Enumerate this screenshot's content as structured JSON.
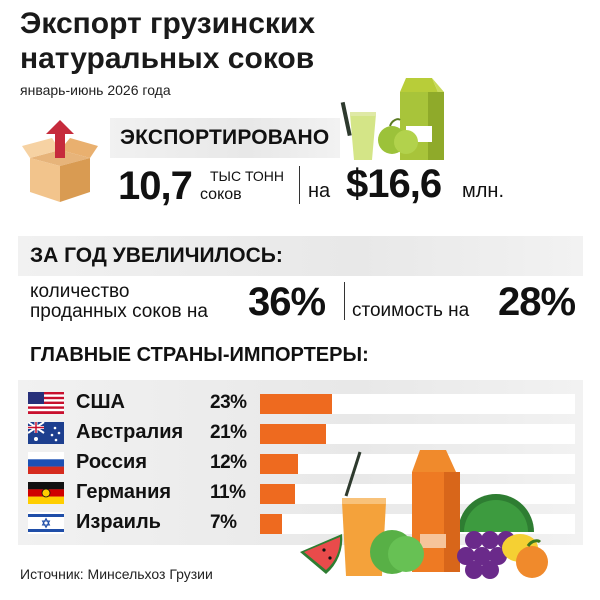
{
  "header": {
    "title_line1": "Экспорт грузинских",
    "title_line2": "натуральных соков",
    "subtitle": "январь-июнь 2026 года"
  },
  "exported": {
    "label": "ЭКСПОРТИРОВАНО",
    "volume": "10,7",
    "volume_unit_line1": "тыс тонн",
    "volume_unit_line2": "соков",
    "value_prefix": "на",
    "value": "$16,6",
    "value_unit": "млн."
  },
  "year_growth": {
    "label": "ЗА ГОД УВЕЛИЧИЛОСЬ:",
    "quantity_line1": "количество",
    "quantity_line2": "проданных соков на",
    "quantity_pct": "36%",
    "cost_text": "стоимость на",
    "cost_pct": "28%"
  },
  "importers_label": "ГЛАВНЫЕ СТРАНЫ-ИМПОРТЕРЫ:",
  "chart_data": {
    "type": "bar",
    "orientation": "horizontal",
    "categories": [
      "США",
      "Австралия",
      "Россия",
      "Германия",
      "Израиль"
    ],
    "values": [
      23,
      21,
      12,
      11,
      7
    ],
    "labels": [
      "23%",
      "21%",
      "12%",
      "11%",
      "7%"
    ],
    "xlim": [
      0,
      100
    ],
    "bar_color": "#ee6a1f"
  },
  "icons": [
    "export-box-icon",
    "juice-packs-icon",
    "fruits-illustration-icon"
  ],
  "colors": {
    "accent": "#ee6a1f",
    "band": "#ececec"
  },
  "source": "Источник: Минсельхоз Грузии"
}
